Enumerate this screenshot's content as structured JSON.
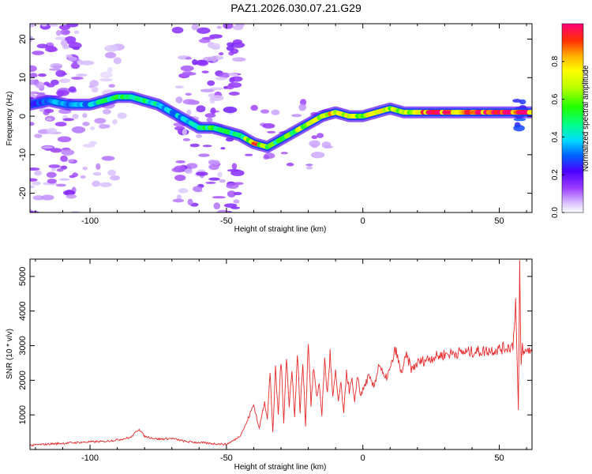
{
  "title": "PAZ1.2026.030.07.21.G29",
  "chart_data": [
    {
      "type": "heatmap",
      "xlabel": "Height of straight line (km)",
      "ylabel": "Frequency (Hz)",
      "xlim": [
        -122,
        62
      ],
      "ylim": [
        -25,
        24
      ],
      "xticks": [
        -100,
        -50,
        0,
        50
      ],
      "yticks": [
        -20,
        -10,
        0,
        10,
        20
      ],
      "colorbar": {
        "label": "Normalized spectral amplitude",
        "range": [
          0,
          1
        ],
        "ticks": [
          "0.0",
          "0.2",
          "0.4",
          "0.6",
          "0.8"
        ],
        "tick_values": [
          0.0,
          0.2,
          0.4,
          0.6,
          0.8
        ]
      },
      "ridge": {
        "x": [
          -122,
          -115,
          -108,
          -100,
          -95,
          -90,
          -85,
          -80,
          -75,
          -70,
          -65,
          -60,
          -55,
          -50,
          -45,
          -40,
          -35,
          -30,
          -25,
          -20,
          -15,
          -10,
          -5,
          0,
          5,
          10,
          15,
          20,
          30,
          40,
          50,
          55,
          60,
          62
        ],
        "freq": [
          3,
          4,
          3,
          3,
          4,
          5,
          5,
          4,
          3,
          1,
          -1,
          -3,
          -3,
          -4,
          -5,
          -7,
          -8,
          -6,
          -4,
          -2,
          0,
          1,
          0,
          0,
          1,
          2,
          1,
          1,
          1,
          1,
          1,
          1,
          1,
          1
        ],
        "amplitude": [
          0.2,
          0.35,
          0.3,
          0.35,
          0.45,
          0.5,
          0.45,
          0.45,
          0.4,
          0.35,
          0.4,
          0.45,
          0.5,
          0.45,
          0.5,
          0.75,
          0.55,
          0.5,
          0.6,
          0.65,
          0.7,
          0.75,
          0.7,
          0.65,
          0.7,
          0.65,
          0.6,
          0.85,
          0.9,
          0.85,
          0.9,
          0.8,
          0.95,
          0.9
        ]
      }
    },
    {
      "type": "line",
      "xlabel": "Height of straight line (km)",
      "ylabel": "SNR (10 * v/v)",
      "xlim": [
        -122,
        62
      ],
      "ylim": [
        0,
        5500
      ],
      "xticks": [
        -100,
        -50,
        0,
        50
      ],
      "yticks": [
        1000,
        2000,
        3000,
        4000,
        5000
      ],
      "series": [
        {
          "name": "SNR",
          "color": "#e8292b",
          "x": [
            -122,
            -115,
            -110,
            -105,
            -100,
            -95,
            -90,
            -85,
            -82,
            -80,
            -75,
            -70,
            -65,
            -60,
            -55,
            -50,
            -47,
            -45,
            -43,
            -40,
            -38,
            -36,
            -35,
            -34,
            -33,
            -32,
            -31,
            -30,
            -29,
            -28,
            -27,
            -26,
            -25,
            -24,
            -23,
            -22,
            -21,
            -20,
            -19,
            -18,
            -17,
            -16,
            -15,
            -14,
            -13,
            -12,
            -11,
            -10,
            -9,
            -8,
            -7,
            -6,
            -5,
            -4,
            -3,
            -2,
            -1,
            0,
            2,
            4,
            6,
            8,
            10,
            12,
            14,
            16,
            18,
            20,
            25,
            30,
            35,
            40,
            45,
            50,
            53,
            55,
            56,
            57,
            57.5,
            58,
            58.5,
            59,
            60,
            61,
            62
          ],
          "values": [
            120,
            160,
            180,
            200,
            220,
            230,
            280,
            350,
            600,
            380,
            300,
            320,
            230,
            200,
            170,
            150,
            280,
            400,
            700,
            1300,
            600,
            1400,
            900,
            2200,
            500,
            2300,
            1000,
            2600,
            800,
            2700,
            1200,
            2400,
            900,
            2800,
            1100,
            2500,
            700,
            3200,
            1300,
            2400,
            1500,
            1900,
            1000,
            2600,
            1600,
            2800,
            1500,
            2200,
            1400,
            1900,
            1000,
            2300,
            1700,
            2000,
            1300,
            2200,
            1600,
            1700,
            2100,
            1800,
            2500,
            2000,
            2300,
            2900,
            2200,
            2700,
            2300,
            2500,
            2650,
            2750,
            2800,
            2820,
            2850,
            2900,
            2950,
            3000,
            4300,
            1100,
            5200,
            2400,
            3000,
            2750,
            2850,
            2900,
            2800
          ]
        }
      ]
    }
  ]
}
